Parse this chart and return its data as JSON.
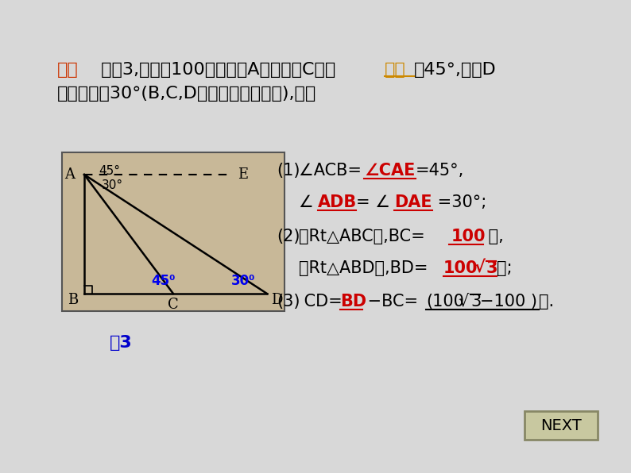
{
  "bg_color": "#d8d8d8",
  "title_text_1": "引例",
  "title_text_2": " 如图3,在高为100米的山顶A测得地面C处的",
  "title_text_3": "俯角",
  "title_text_4": "为45°,地面D",
  "title_text_5": "处的俯角为30°(B,C,D三点在一条直线上),那么",
  "title_color_1": "#cc3300",
  "title_color_2": "#000000",
  "title_color_3": "#cc8800",
  "next_text": "NEXT",
  "next_bg": "#c8c8a0",
  "next_border": "#888866",
  "diagram_bg": "#c8b898",
  "fig3_text": "图3",
  "fig3_color": "#0000cc"
}
